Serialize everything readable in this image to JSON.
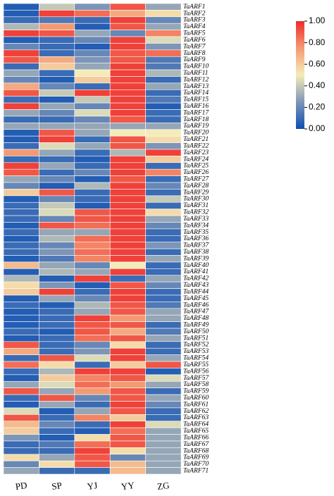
{
  "chart_data": {
    "type": "heatmap",
    "x": [
      "PD",
      "SP",
      "YJ",
      "YY",
      "ZG"
    ],
    "y": [
      "TaARF1",
      "TaARF2",
      "TaARF3",
      "TaARF4",
      "TaARF5",
      "TaARF6",
      "TaARF7",
      "TaARF8",
      "TaARF9",
      "TaARF10",
      "TaARF11",
      "TaARF12",
      "TaARF13",
      "TaARF14",
      "TaARF15",
      "TaARF16",
      "TaARF17",
      "TaARF18",
      "TaARF19",
      "TaARF20",
      "TaARF21",
      "TaARF22",
      "TaARF23",
      "TaARF24",
      "TaARF25",
      "TaARF26",
      "TaARF27",
      "TaARF28",
      "TaARF29",
      "TaARF30",
      "TaARF31",
      "TaARF32",
      "TaARF33",
      "TaARF34",
      "TaARF35",
      "TaARF36",
      "TaARF37",
      "TaARF38",
      "TaARF39",
      "TaARF40",
      "TaARF41",
      "TaARF42",
      "TaARF43",
      "TaARF44",
      "TaARF45",
      "TaARF46",
      "TaARF47",
      "TaARF48",
      "TaARF49",
      "TaARF50",
      "TaARF51",
      "TaARF52",
      "TaARF53",
      "TaARF54",
      "TaARF55",
      "TaARF56",
      "TaARF57",
      "TaARF58",
      "TaARF59",
      "TaARF60",
      "TaARF61",
      "TaARF62",
      "TaARF63",
      "TaARF64",
      "TaARF65",
      "TaARF66",
      "TaARF67",
      "TaARF68",
      "TaARF69",
      "TaARF70",
      "TaARF71"
    ],
    "values": [
      [
        0.05,
        0.4,
        0.25,
        0.9,
        0.3
      ],
      [
        0.05,
        0.95,
        0.85,
        0.7,
        0.55
      ],
      [
        0.1,
        0.15,
        0.1,
        0.95,
        0.2
      ],
      [
        0.35,
        0.75,
        0.05,
        0.9,
        0.3
      ],
      [
        0.95,
        0.9,
        0.3,
        0.2,
        0.8
      ],
      [
        0.05,
        0.1,
        0.2,
        0.95,
        0.45
      ],
      [
        0.2,
        0.1,
        0.05,
        0.95,
        0.25
      ],
      [
        0.95,
        0.1,
        0.2,
        0.9,
        0.85
      ],
      [
        0.9,
        0.7,
        0.25,
        0.9,
        0.15
      ],
      [
        0.1,
        0.6,
        0.3,
        0.95,
        0.15
      ],
      [
        0.3,
        0.1,
        0.5,
        0.95,
        0.35
      ],
      [
        0.2,
        0.05,
        0.6,
        0.95,
        0.1
      ],
      [
        0.7,
        0.2,
        0.1,
        0.95,
        0.3
      ],
      [
        0.9,
        0.4,
        0.95,
        0.95,
        0.1
      ],
      [
        0.1,
        0.05,
        0.4,
        0.95,
        0.15
      ],
      [
        0.95,
        0.3,
        0.2,
        0.95,
        0.05
      ],
      [
        0.3,
        0.2,
        0.45,
        0.95,
        0.1
      ],
      [
        0.1,
        0.1,
        0.2,
        0.9,
        0.1
      ],
      [
        0.3,
        0.3,
        0.3,
        0.3,
        0.3
      ],
      [
        0.05,
        0.9,
        0.3,
        0.5,
        0.5
      ],
      [
        0.05,
        0.95,
        0.1,
        0.9,
        0.55
      ],
      [
        0.1,
        0.45,
        0.3,
        0.9,
        0.25
      ],
      [
        0.75,
        0.3,
        0.1,
        0.35,
        0.95
      ],
      [
        0.1,
        0.1,
        0.05,
        0.95,
        0.6
      ],
      [
        0.95,
        0.3,
        0.1,
        0.95,
        0.1
      ],
      [
        0.9,
        0.1,
        0.2,
        0.95,
        0.8
      ],
      [
        0.3,
        0.2,
        0.05,
        0.9,
        0.1
      ],
      [
        0.2,
        0.05,
        0.35,
        0.95,
        0.2
      ],
      [
        0.6,
        0.9,
        0.1,
        0.95,
        0.1
      ],
      [
        0.05,
        0.2,
        0.1,
        0.95,
        0.4
      ],
      [
        0.1,
        0.4,
        0.05,
        0.95,
        0.1
      ],
      [
        0.1,
        0.45,
        0.9,
        0.95,
        0.55
      ],
      [
        0.1,
        0.2,
        0.9,
        0.95,
        0.3
      ],
      [
        0.05,
        0.9,
        0.85,
        0.95,
        0.2
      ],
      [
        0.1,
        0.3,
        0.3,
        0.95,
        0.1
      ],
      [
        0.05,
        0.35,
        0.85,
        0.95,
        0.1
      ],
      [
        0.1,
        0.2,
        0.8,
        0.95,
        0.25
      ],
      [
        0.1,
        0.25,
        0.85,
        0.95,
        0.1
      ],
      [
        0.05,
        0.15,
        0.8,
        0.95,
        0.3
      ],
      [
        0.65,
        0.3,
        0.2,
        0.5,
        0.1
      ],
      [
        0.05,
        0.35,
        0.3,
        0.95,
        0.1
      ],
      [
        0.35,
        0.05,
        0.95,
        0.1,
        0.3
      ],
      [
        0.55,
        0.25,
        0.05,
        0.9,
        0.2
      ],
      [
        0.6,
        0.95,
        0.1,
        0.95,
        0.1
      ],
      [
        0.05,
        0.3,
        0.2,
        0.95,
        0.1
      ],
      [
        0.1,
        0.05,
        0.35,
        0.9,
        0.15
      ],
      [
        0.05,
        0.1,
        0.3,
        0.9,
        0.3
      ],
      [
        0.05,
        0.1,
        0.95,
        0.75,
        0.3
      ],
      [
        0.05,
        0.1,
        0.9,
        0.9,
        0.1
      ],
      [
        0.1,
        0.05,
        0.9,
        0.7,
        0.15
      ],
      [
        0.05,
        0.1,
        0.85,
        0.9,
        0.3
      ],
      [
        0.9,
        0.1,
        0.2,
        0.55,
        0.1
      ],
      [
        0.7,
        0.1,
        0.25,
        0.95,
        0.1
      ],
      [
        0.1,
        0.9,
        0.45,
        0.95,
        0.3
      ],
      [
        0.85,
        0.55,
        0.1,
        0.6,
        0.9
      ],
      [
        0.1,
        0.35,
        0.95,
        0.95,
        0.05
      ],
      [
        0.05,
        0.6,
        0.8,
        0.9,
        0.45
      ],
      [
        0.3,
        0.45,
        0.85,
        0.75,
        0.3
      ],
      [
        0.9,
        0.3,
        0.75,
        0.9,
        0.1
      ],
      [
        0.1,
        0.9,
        0.2,
        0.9,
        0.3
      ],
      [
        0.05,
        0.3,
        0.1,
        0.95,
        0.2
      ],
      [
        0.45,
        0.05,
        0.3,
        0.9,
        0.1
      ],
      [
        0.9,
        0.1,
        0.8,
        0.6,
        0.1
      ],
      [
        0.65,
        0.2,
        0.1,
        0.95,
        0.45
      ],
      [
        0.6,
        0.1,
        0.05,
        0.85,
        0.3
      ],
      [
        0.25,
        0.05,
        0.55,
        0.9,
        0.3
      ],
      [
        0.1,
        0.15,
        0.85,
        0.9,
        0.3
      ],
      [
        0.1,
        0.1,
        0.95,
        0.55,
        0.3
      ],
      [
        0.55,
        0.3,
        0.9,
        0.2,
        0.3
      ],
      [
        0.2,
        0.55,
        0.9,
        0.65,
        0.3
      ],
      [
        0.3,
        0.1,
        0.1,
        0.65,
        0.3
      ]
    ],
    "colorscale": [
      [
        0,
        "#0d4fb3"
      ],
      [
        0.25,
        "#7d95b7"
      ],
      [
        0.5,
        "#f4ecb8"
      ],
      [
        0.75,
        "#f49a72"
      ],
      [
        1,
        "#ee2b2b"
      ]
    ],
    "zlim": [
      0,
      1
    ],
    "zticks": [
      {
        "value": 1,
        "label": "1.00"
      },
      {
        "value": 0.8,
        "label": "0.80"
      },
      {
        "value": 0.6,
        "label": "0.60"
      },
      {
        "value": 0.4,
        "label": "0.40"
      },
      {
        "value": 0.2,
        "label": "0.20"
      },
      {
        "value": 0,
        "label": "0.00"
      }
    ]
  }
}
